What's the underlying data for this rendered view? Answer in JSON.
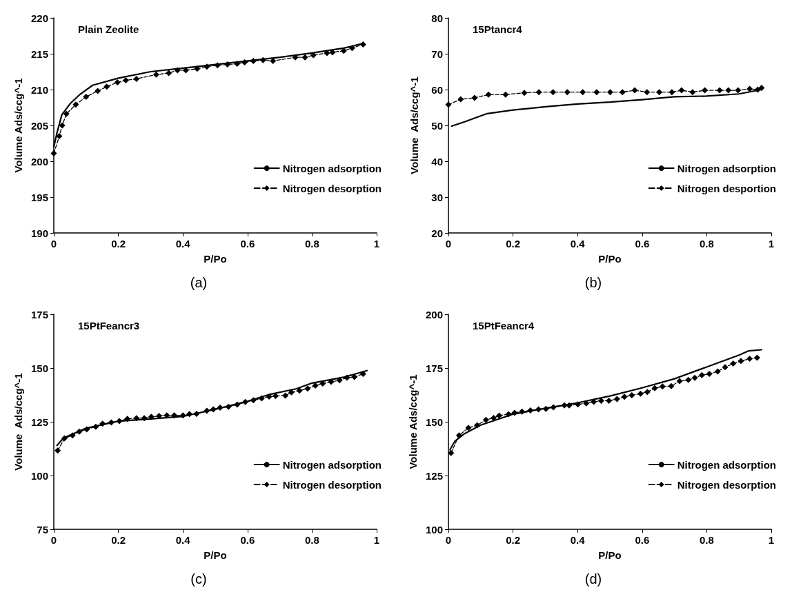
{
  "chart_data": [
    {
      "type": "line",
      "title": "Plain Zeolite",
      "xlabel": "P/Po",
      "ylabel": "Volume Ads/ccg^-1",
      "annotations": [
        "(a)"
      ],
      "xlim": [
        0,
        1
      ],
      "xticks": [
        0,
        0.2,
        0.4,
        0.6,
        0.8,
        1
      ],
      "ylim": [
        190,
        220
      ],
      "yticks": [
        190,
        195,
        200,
        205,
        210,
        215,
        220
      ],
      "grid": false,
      "legend": "right",
      "series": [
        {
          "name": "Nitrogen adsorption",
          "color": "#000000",
          "marker": "none",
          "line_style": "solid",
          "x": [
            0,
            0.01,
            0.025,
            0.05,
            0.08,
            0.12,
            0.2,
            0.3,
            0.4,
            0.5,
            0.6,
            0.7,
            0.8,
            0.9,
            0.955
          ],
          "values": [
            202,
            204,
            206.5,
            208,
            209.3,
            210.6,
            211.6,
            212.5,
            213,
            213.5,
            214,
            214.5,
            215.1,
            215.8,
            216.4
          ]
        },
        {
          "name": "Nitrogen desorption",
          "color": "#000000",
          "marker": "diamond",
          "line_style": "dashed",
          "x": [
            0,
            0.017,
            0.026,
            0.039,
            0.068,
            0.1,
            0.136,
            0.164,
            0.197,
            0.223,
            0.256,
            0.317,
            0.356,
            0.383,
            0.409,
            0.444,
            0.474,
            0.507,
            0.538,
            0.568,
            0.591,
            0.618,
            0.648,
            0.679,
            0.748,
            0.778,
            0.804,
            0.846,
            0.863,
            0.898,
            0.924,
            0.958
          ],
          "values": [
            201.1,
            203.5,
            205,
            206.6,
            207.9,
            209,
            209.8,
            210.4,
            211,
            211.3,
            211.5,
            212.1,
            212.3,
            212.7,
            212.7,
            212.9,
            213.2,
            213.4,
            213.5,
            213.6,
            213.8,
            214,
            214.1,
            214,
            214.5,
            214.5,
            214.8,
            215.1,
            215.2,
            215.4,
            215.8,
            216.3
          ]
        }
      ]
    },
    {
      "type": "line",
      "title": "15Ptancr4",
      "xlabel": "P/Po",
      "ylabel": "Volume  Ads/ccg^-1",
      "annotations": [
        "(b)"
      ],
      "xlim": [
        0,
        1
      ],
      "xticks": [
        0,
        0.2,
        0.4,
        0.6,
        0.8,
        1
      ],
      "ylim": [
        20,
        80
      ],
      "yticks": [
        20,
        30,
        40,
        50,
        60,
        70,
        80
      ],
      "grid": false,
      "legend": "right",
      "series": [
        {
          "name": "Nitrogen adsorption",
          "color": "#000000",
          "marker": "none",
          "line_style": "solid",
          "x": [
            0.01,
            0.05,
            0.12,
            0.2,
            0.3,
            0.4,
            0.5,
            0.6,
            0.7,
            0.8,
            0.9,
            0.97
          ],
          "values": [
            49.8,
            51,
            53.3,
            54.3,
            55.2,
            56,
            56.5,
            57.2,
            58,
            58.2,
            58.8,
            60
          ]
        },
        {
          "name": "Nitrogen desportion",
          "color": "#000000",
          "marker": "diamond",
          "line_style": "dashed",
          "x": [
            0,
            0.038,
            0.081,
            0.124,
            0.177,
            0.235,
            0.28,
            0.324,
            0.368,
            0.416,
            0.459,
            0.501,
            0.539,
            0.577,
            0.615,
            0.653,
            0.692,
            0.722,
            0.756,
            0.794,
            0.84,
            0.867,
            0.897,
            0.933,
            0.958,
            0.97
          ],
          "values": [
            55.8,
            57.3,
            57.7,
            58.6,
            58.6,
            59.1,
            59.3,
            59.3,
            59.3,
            59.3,
            59.3,
            59.3,
            59.3,
            59.8,
            59.3,
            59.3,
            59.3,
            59.8,
            59.3,
            59.8,
            59.8,
            59.8,
            59.8,
            60.2,
            60,
            60.5
          ]
        }
      ]
    },
    {
      "type": "line",
      "title": "15PtFeancr3",
      "xlabel": "P/Po",
      "ylabel": "Volume  Ads/ccg^-1",
      "annotations": [
        "(c)"
      ],
      "xlim": [
        0,
        1
      ],
      "xticks": [
        0,
        0.2,
        0.4,
        0.6,
        0.8,
        1
      ],
      "ylim": [
        75,
        175
      ],
      "yticks": [
        75,
        100,
        125,
        150,
        175
      ],
      "grid": false,
      "legend": "right",
      "series": [
        {
          "name": "Nitrogen adsorption",
          "color": "#000000",
          "marker": "none",
          "line_style": "solid",
          "x": [
            0.01,
            0.03,
            0.1,
            0.2,
            0.3,
            0.4,
            0.5,
            0.6,
            0.67,
            0.75,
            0.8,
            0.9,
            0.97
          ],
          "values": [
            114,
            117.5,
            122,
            125.3,
            126.3,
            127.5,
            130.8,
            134.5,
            137.8,
            140.3,
            143,
            145.8,
            148.8
          ]
        },
        {
          "name": "Nitrogen desorption",
          "color": "#000000",
          "marker": "diamond",
          "line_style": "dashed",
          "x": [
            0.012,
            0.033,
            0.058,
            0.079,
            0.102,
            0.13,
            0.151,
            0.178,
            0.203,
            0.228,
            0.256,
            0.28,
            0.302,
            0.326,
            0.35,
            0.373,
            0.4,
            0.42,
            0.442,
            0.474,
            0.494,
            0.515,
            0.541,
            0.568,
            0.593,
            0.618,
            0.644,
            0.667,
            0.687,
            0.717,
            0.736,
            0.761,
            0.786,
            0.81,
            0.833,
            0.859,
            0.885,
            0.908,
            0.931,
            0.958
          ],
          "values": [
            111.6,
            117.3,
            118.7,
            120.4,
            121.5,
            122.7,
            124.1,
            124.7,
            125.3,
            126.4,
            126.7,
            126.7,
            127.3,
            127.7,
            128,
            128,
            128,
            128.6,
            128.7,
            130.1,
            130.8,
            131.6,
            132,
            133,
            134.2,
            135,
            135.9,
            136.7,
            137,
            137.2,
            138.7,
            139.5,
            140.5,
            141.8,
            142.8,
            143.6,
            144.3,
            145.5,
            145.8,
            147.3
          ]
        }
      ]
    },
    {
      "type": "line",
      "title": "15PtFeancr4",
      "xlabel": "P/Po",
      "ylabel": "Volume Ads/ccg^-1",
      "annotations": [
        "(d)"
      ],
      "xlim": [
        0,
        1
      ],
      "xticks": [
        0,
        0.2,
        0.4,
        0.6,
        0.8,
        1
      ],
      "ylim": [
        100,
        200
      ],
      "yticks": [
        100,
        125,
        150,
        175,
        200
      ],
      "grid": false,
      "legend": "right",
      "series": [
        {
          "name": "Nitrogen adsorption",
          "color": "#000000",
          "marker": "none",
          "line_style": "solid",
          "x": [
            0.005,
            0.02,
            0.05,
            0.1,
            0.2,
            0.3,
            0.4,
            0.5,
            0.6,
            0.7,
            0.8,
            0.9,
            0.93,
            0.97
          ],
          "values": [
            137,
            141,
            144.5,
            148.5,
            153.5,
            156.3,
            158.8,
            162,
            165.8,
            170,
            175.5,
            181,
            183,
            183.5
          ]
        },
        {
          "name": "Nitrogen desorption",
          "color": "#000000",
          "marker": "diamond",
          "line_style": "dashed",
          "x": [
            0.008,
            0.033,
            0.062,
            0.089,
            0.116,
            0.14,
            0.157,
            0.186,
            0.205,
            0.228,
            0.254,
            0.279,
            0.302,
            0.325,
            0.359,
            0.374,
            0.401,
            0.427,
            0.45,
            0.473,
            0.497,
            0.522,
            0.545,
            0.568,
            0.595,
            0.616,
            0.639,
            0.663,
            0.69,
            0.716,
            0.743,
            0.763,
            0.785,
            0.808,
            0.834,
            0.857,
            0.882,
            0.906,
            0.933,
            0.956
          ],
          "values": [
            135.5,
            143.7,
            147.2,
            148.4,
            150.9,
            151.8,
            152.9,
            153.5,
            154.2,
            154.7,
            155.3,
            155.8,
            156,
            156.7,
            157.6,
            157.6,
            158.1,
            158.6,
            159.3,
            159.8,
            159.8,
            160.6,
            161.6,
            162.3,
            163.1,
            163.9,
            165.6,
            166.4,
            166.6,
            168.9,
            169.5,
            170.4,
            171.7,
            172.3,
            173.4,
            175.4,
            177.1,
            178.3,
            179.3,
            179.8
          ]
        }
      ]
    }
  ]
}
